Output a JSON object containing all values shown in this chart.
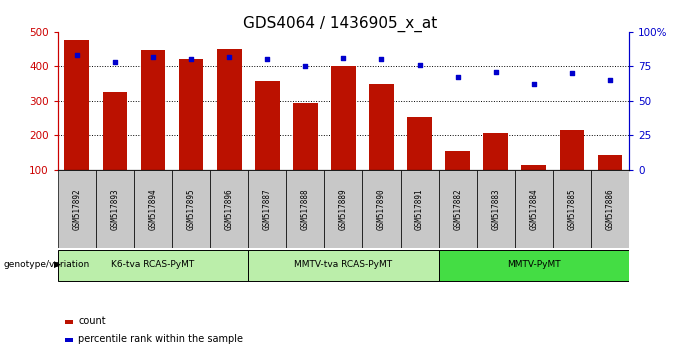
{
  "title": "GDS4064 / 1436905_x_at",
  "samples": [
    "GSM517892",
    "GSM517893",
    "GSM517894",
    "GSM517895",
    "GSM517896",
    "GSM517887",
    "GSM517888",
    "GSM517889",
    "GSM517890",
    "GSM517891",
    "GSM517882",
    "GSM517883",
    "GSM517884",
    "GSM517885",
    "GSM517886"
  ],
  "counts": [
    475,
    325,
    447,
    422,
    450,
    357,
    295,
    400,
    350,
    252,
    155,
    208,
    115,
    215,
    142
  ],
  "percentiles": [
    83,
    78,
    82,
    80,
    82,
    80,
    75,
    81,
    80,
    76,
    67,
    71,
    62,
    70,
    65
  ],
  "groups": [
    {
      "label": "K6-tva RCAS-PyMT",
      "start": 0,
      "end": 5
    },
    {
      "label": "MMTV-tva RCAS-PyMT",
      "start": 5,
      "end": 10
    },
    {
      "label": "MMTV-PyMT",
      "start": 10,
      "end": 15
    }
  ],
  "group_colors": [
    "#BBEEAA",
    "#BBEEAA",
    "#44DD44"
  ],
  "bar_color": "#BB1100",
  "dot_color": "#0000CC",
  "ylim_left": [
    100,
    500
  ],
  "ylim_right": [
    0,
    100
  ],
  "yticks_left": [
    100,
    200,
    300,
    400,
    500
  ],
  "yticks_right": [
    0,
    25,
    50,
    75,
    100
  ],
  "title_fontsize": 11,
  "tick_label_color_left": "#CC0000",
  "tick_label_color_right": "#0000CC",
  "cell_bg": "#C8C8C8",
  "grid_vals": [
    200,
    300,
    400
  ]
}
